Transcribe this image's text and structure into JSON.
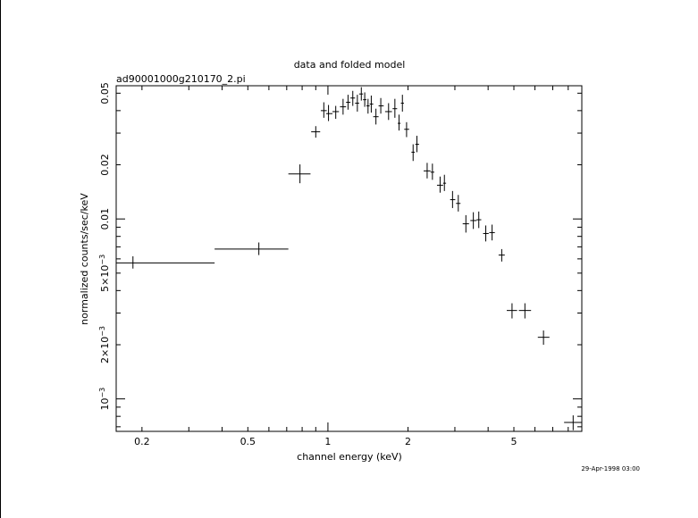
{
  "chart_data": {
    "type": "scatter",
    "title": "data and folded model",
    "subtitle": "ad90001000g210170_2.pi",
    "xlabel": "channel energy (keV)",
    "ylabel": "normalized counts/sec/keV",
    "timestamp": "29-Apr-1998 03:00",
    "xscale": "log",
    "yscale": "log",
    "xlim": [
      0.16,
      9.0
    ],
    "ylim": [
      0.00066,
      0.055
    ],
    "x_ticks": [
      {
        "value": 0.2,
        "label": "0.2"
      },
      {
        "value": 0.5,
        "label": "0.5"
      },
      {
        "value": 1,
        "label": "1"
      },
      {
        "value": 2,
        "label": "2"
      },
      {
        "value": 5,
        "label": "5"
      }
    ],
    "y_ticks": [
      {
        "value": 0.05,
        "label": "0.05"
      },
      {
        "value": 0.02,
        "label": "0.02"
      },
      {
        "value": 0.01,
        "label": "0.01"
      },
      {
        "value": 0.005,
        "label": "5×10",
        "sup": "−3"
      },
      {
        "value": 0.002,
        "label": "2×10",
        "sup": "−3"
      },
      {
        "value": 0.001,
        "label": "10",
        "sup": "−3"
      }
    ],
    "points": [
      {
        "x": 0.185,
        "xlo": 0.16,
        "xhi": 0.375,
        "y": 0.0057,
        "ylo": 0.0053,
        "yhi": 0.0062
      },
      {
        "x": 0.55,
        "xlo": 0.375,
        "xhi": 0.71,
        "y": 0.0068,
        "ylo": 0.0063,
        "yhi": 0.0074
      },
      {
        "x": 0.785,
        "xlo": 0.71,
        "xhi": 0.86,
        "y": 0.0178,
        "ylo": 0.0158,
        "yhi": 0.0201
      },
      {
        "x": 0.9,
        "xlo": 0.865,
        "xhi": 0.935,
        "y": 0.0305,
        "ylo": 0.0283,
        "yhi": 0.0328
      },
      {
        "x": 0.965,
        "xlo": 0.94,
        "xhi": 0.99,
        "y": 0.04,
        "ylo": 0.0365,
        "yhi": 0.0445
      },
      {
        "x": 1.005,
        "xlo": 0.985,
        "xhi": 1.04,
        "y": 0.0385,
        "ylo": 0.035,
        "yhi": 0.043
      },
      {
        "x": 1.07,
        "xlo": 1.04,
        "xhi": 1.1,
        "y": 0.0395,
        "ylo": 0.036,
        "yhi": 0.0425
      },
      {
        "x": 1.14,
        "xlo": 1.11,
        "xhi": 1.17,
        "y": 0.042,
        "ylo": 0.038,
        "yhi": 0.0465
      },
      {
        "x": 1.19,
        "xlo": 1.17,
        "xhi": 1.215,
        "y": 0.0445,
        "ylo": 0.0405,
        "yhi": 0.049
      },
      {
        "x": 1.24,
        "xlo": 1.215,
        "xhi": 1.265,
        "y": 0.047,
        "ylo": 0.0425,
        "yhi": 0.0515
      },
      {
        "x": 1.29,
        "xlo": 1.265,
        "xhi": 1.31,
        "y": 0.044,
        "ylo": 0.0395,
        "yhi": 0.049
      },
      {
        "x": 1.335,
        "xlo": 1.31,
        "xhi": 1.355,
        "y": 0.0495,
        "ylo": 0.0455,
        "yhi": 0.054
      },
      {
        "x": 1.375,
        "xlo": 1.355,
        "xhi": 1.395,
        "y": 0.046,
        "ylo": 0.042,
        "yhi": 0.0505
      },
      {
        "x": 1.415,
        "xlo": 1.395,
        "xhi": 1.435,
        "y": 0.0425,
        "ylo": 0.0385,
        "yhi": 0.0465
      },
      {
        "x": 1.455,
        "xlo": 1.435,
        "xhi": 1.48,
        "y": 0.0435,
        "ylo": 0.039,
        "yhi": 0.0485
      },
      {
        "x": 1.515,
        "xlo": 1.48,
        "xhi": 1.55,
        "y": 0.037,
        "ylo": 0.0335,
        "yhi": 0.041
      },
      {
        "x": 1.58,
        "xlo": 1.55,
        "xhi": 1.62,
        "y": 0.0425,
        "ylo": 0.0385,
        "yhi": 0.047
      },
      {
        "x": 1.69,
        "xlo": 1.64,
        "xhi": 1.74,
        "y": 0.0395,
        "ylo": 0.0355,
        "yhi": 0.044
      },
      {
        "x": 1.785,
        "xlo": 1.75,
        "xhi": 1.82,
        "y": 0.041,
        "ylo": 0.0365,
        "yhi": 0.0465
      },
      {
        "x": 1.85,
        "xlo": 1.83,
        "xhi": 1.875,
        "y": 0.034,
        "ylo": 0.031,
        "yhi": 0.038
      },
      {
        "x": 1.905,
        "xlo": 1.88,
        "xhi": 1.93,
        "y": 0.044,
        "ylo": 0.0395,
        "yhi": 0.049
      },
      {
        "x": 1.975,
        "xlo": 1.935,
        "xhi": 2.02,
        "y": 0.0315,
        "ylo": 0.0285,
        "yhi": 0.0345
      },
      {
        "x": 2.09,
        "xlo": 2.06,
        "xhi": 2.12,
        "y": 0.0235,
        "ylo": 0.021,
        "yhi": 0.026
      },
      {
        "x": 2.16,
        "xlo": 2.13,
        "xhi": 2.2,
        "y": 0.026,
        "ylo": 0.0235,
        "yhi": 0.029
      },
      {
        "x": 2.36,
        "xlo": 2.29,
        "xhi": 2.43,
        "y": 0.0185,
        "ylo": 0.0168,
        "yhi": 0.0205
      },
      {
        "x": 2.47,
        "xlo": 2.43,
        "xhi": 2.51,
        "y": 0.0182,
        "ylo": 0.0165,
        "yhi": 0.0203
      },
      {
        "x": 2.64,
        "xlo": 2.57,
        "xhi": 2.71,
        "y": 0.0154,
        "ylo": 0.014,
        "yhi": 0.0172
      },
      {
        "x": 2.74,
        "xlo": 2.71,
        "xhi": 2.78,
        "y": 0.0158,
        "ylo": 0.0143,
        "yhi": 0.0176
      },
      {
        "x": 2.94,
        "xlo": 2.88,
        "xhi": 3.01,
        "y": 0.0128,
        "ylo": 0.0115,
        "yhi": 0.0143
      },
      {
        "x": 3.09,
        "xlo": 3.03,
        "xhi": 3.15,
        "y": 0.0122,
        "ylo": 0.011,
        "yhi": 0.0136
      },
      {
        "x": 3.3,
        "xlo": 3.21,
        "xhi": 3.39,
        "y": 0.0094,
        "ylo": 0.0084,
        "yhi": 0.0105
      },
      {
        "x": 3.52,
        "xlo": 3.43,
        "xhi": 3.62,
        "y": 0.0098,
        "ylo": 0.0088,
        "yhi": 0.0109
      },
      {
        "x": 3.69,
        "xlo": 3.62,
        "xhi": 3.77,
        "y": 0.0099,
        "ylo": 0.0089,
        "yhi": 0.011
      },
      {
        "x": 3.92,
        "xlo": 3.83,
        "xhi": 4.02,
        "y": 0.0083,
        "ylo": 0.0075,
        "yhi": 0.0092
      },
      {
        "x": 4.14,
        "xlo": 4.04,
        "xhi": 4.24,
        "y": 0.0084,
        "ylo": 0.0076,
        "yhi": 0.0093
      },
      {
        "x": 4.5,
        "xlo": 4.38,
        "xhi": 4.62,
        "y": 0.0063,
        "ylo": 0.0058,
        "yhi": 0.0068
      },
      {
        "x": 4.92,
        "xlo": 4.7,
        "xhi": 5.14,
        "y": 0.0031,
        "ylo": 0.0028,
        "yhi": 0.0034
      },
      {
        "x": 5.5,
        "xlo": 5.22,
        "xhi": 5.8,
        "y": 0.0031,
        "ylo": 0.0028,
        "yhi": 0.0034
      },
      {
        "x": 6.46,
        "xlo": 6.15,
        "xhi": 6.8,
        "y": 0.0022,
        "ylo": 0.002,
        "yhi": 0.0024
      },
      {
        "x": 8.35,
        "xlo": 7.72,
        "xhi": 9.0,
        "y": 0.00074,
        "ylo": 0.00067,
        "yhi": 0.00081
      }
    ]
  }
}
